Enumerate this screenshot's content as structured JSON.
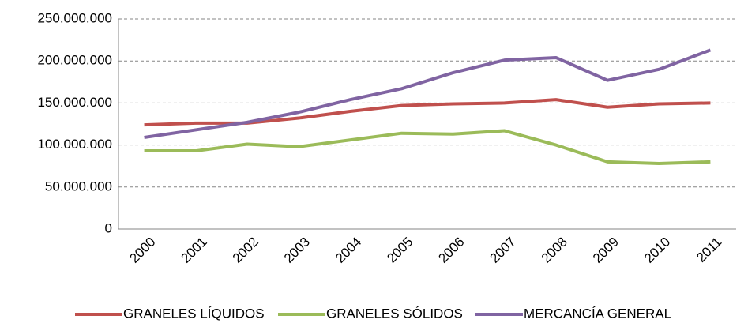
{
  "chart_data": {
    "type": "line",
    "categories": [
      "2000",
      "2001",
      "2002",
      "2003",
      "2004",
      "2005",
      "2006",
      "2007",
      "2008",
      "2009",
      "2010",
      "2011"
    ],
    "series": [
      {
        "name": "GRANELES LÍQUIDOS",
        "color": "#c0504d",
        "values": [
          124000000,
          126000000,
          126000000,
          132000000,
          140000000,
          147000000,
          149000000,
          150000000,
          154000000,
          145000000,
          149000000,
          150000000
        ]
      },
      {
        "name": "GRANELES SÓLIDOS",
        "color": "#9bbb59",
        "values": [
          93000000,
          93000000,
          101000000,
          98000000,
          106000000,
          114000000,
          113000000,
          117000000,
          100000000,
          80000000,
          78000000,
          80000000
        ]
      },
      {
        "name": "MERCANCÍA GENERAL",
        "color": "#8064a2",
        "values": [
          109000000,
          118000000,
          127000000,
          139000000,
          154000000,
          167000000,
          186000000,
          201000000,
          204000000,
          177000000,
          190000000,
          213000000
        ]
      }
    ],
    "ylim": [
      0,
      250000000
    ],
    "yticks": [
      0,
      {
        "value": 50000000,
        "label": "50.000.000"
      },
      {
        "value": 100000000,
        "label": "100.000.000"
      },
      {
        "value": 150000000,
        "label": "150.000.000"
      },
      {
        "value": 200000000,
        "label": "200.000.000"
      },
      {
        "value": 250000000,
        "label": "250.000.000"
      }
    ],
    "grid": true,
    "legend": "bottom"
  }
}
